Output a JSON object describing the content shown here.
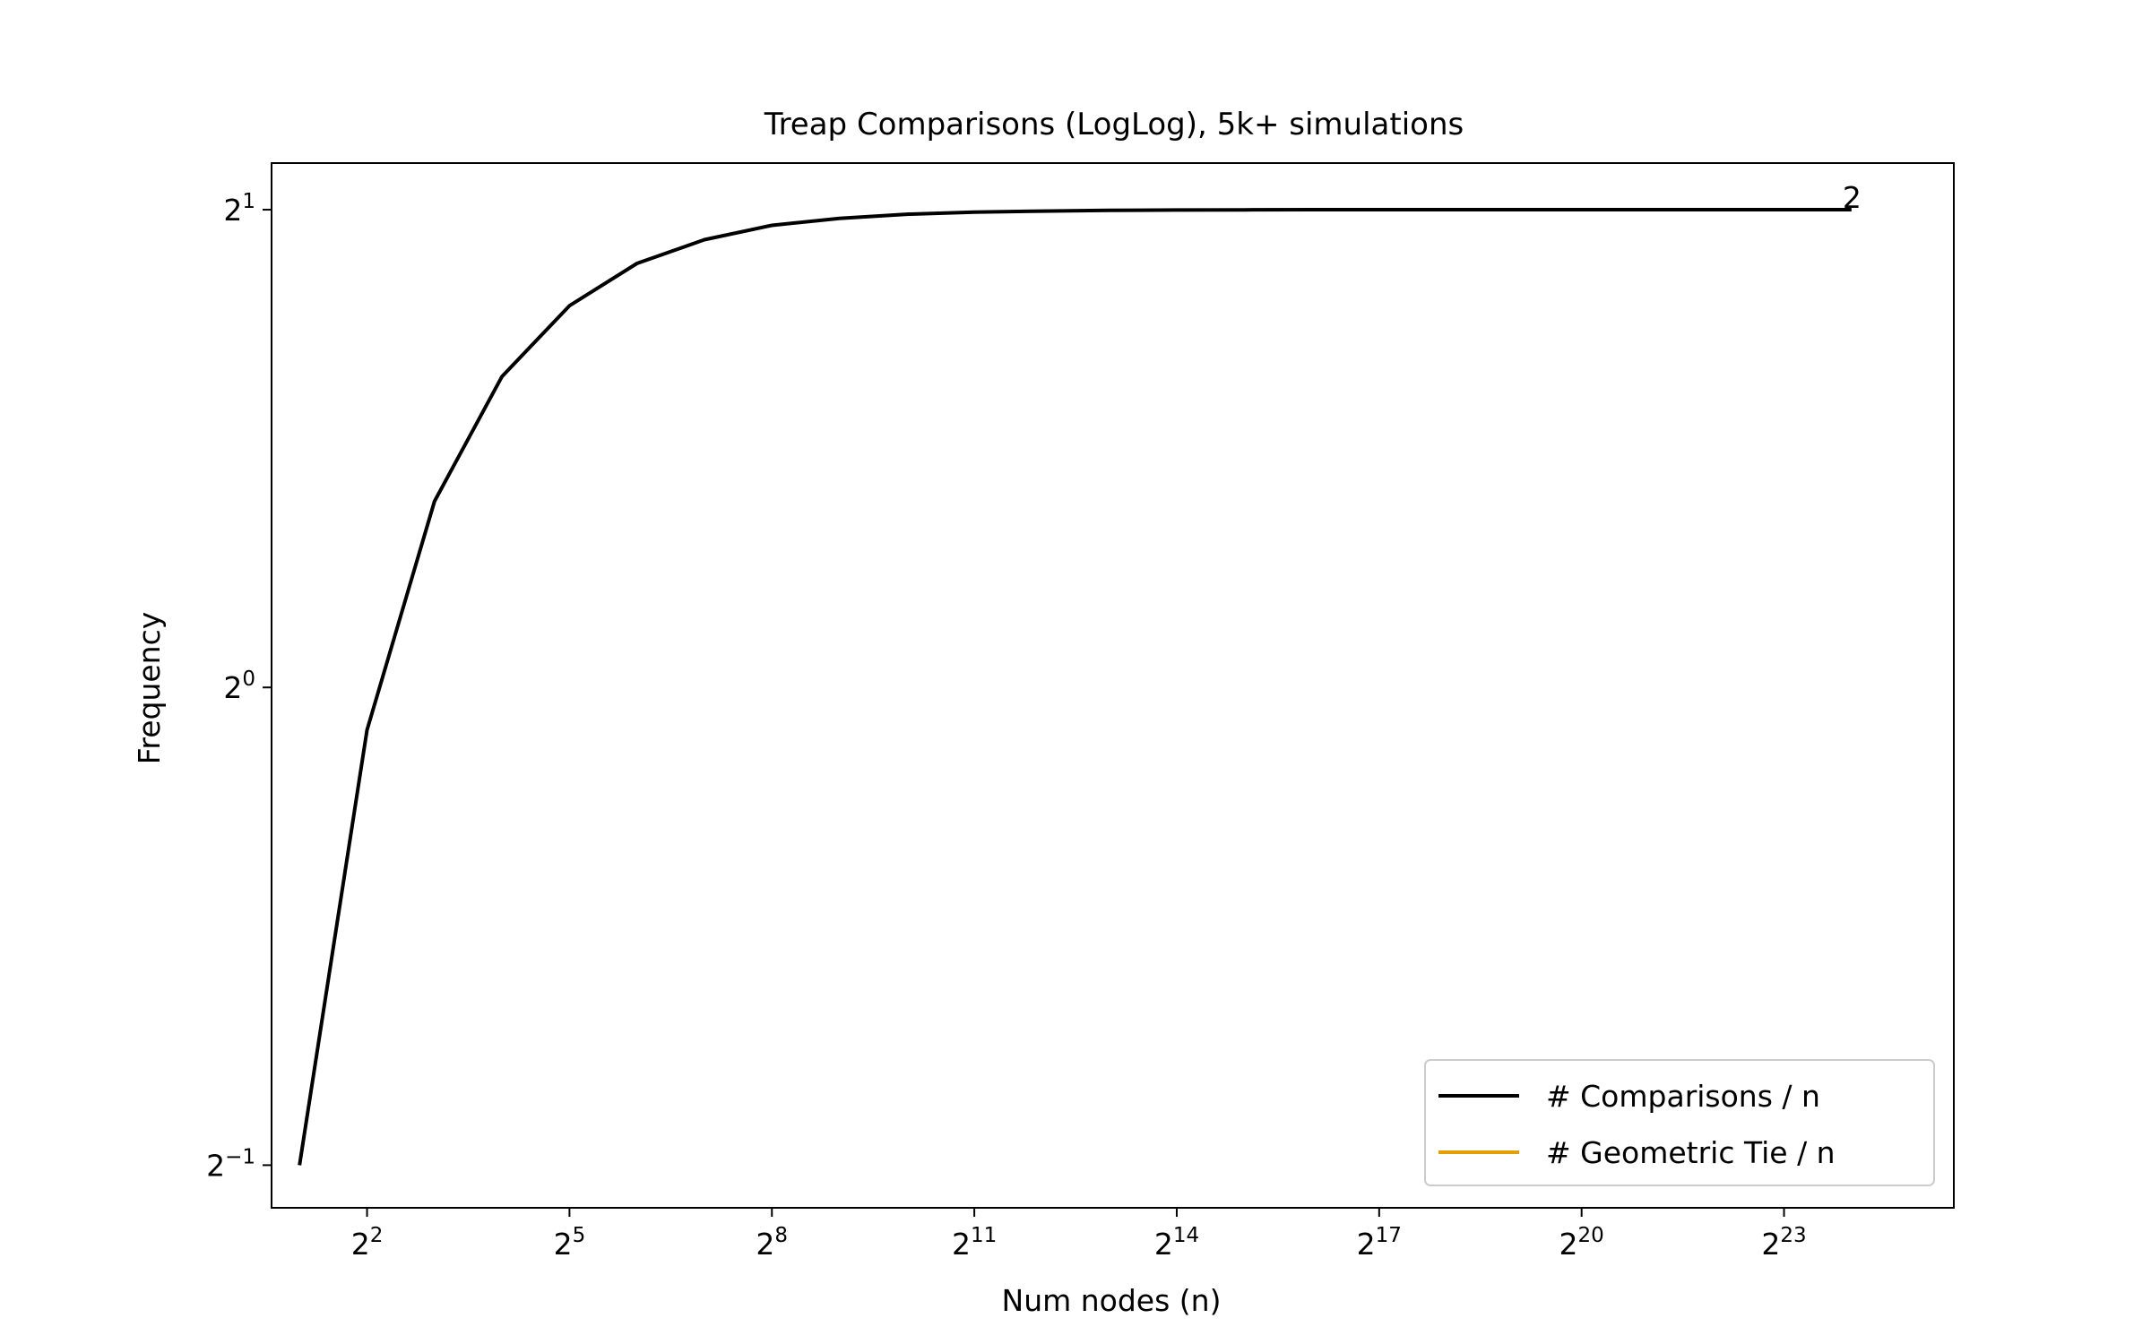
{
  "chart_data": {
    "type": "line",
    "title": "Treap Comparisons (LogLog), 5k+ simulations",
    "xlabel": "Num nodes (n)",
    "ylabel": "Frequency",
    "xscale": "log2",
    "yscale": "log2",
    "xlim": [
      1.5,
      48000000
    ],
    "ylim": [
      0.47,
      2.14
    ],
    "grid": false,
    "legend_position": "lower-right",
    "x_ticks": [
      {
        "base": "2",
        "exp": "2",
        "value": 4
      },
      {
        "base": "2",
        "exp": "5",
        "value": 32
      },
      {
        "base": "2",
        "exp": "8",
        "value": 256
      },
      {
        "base": "2",
        "exp": "11",
        "value": 2048
      },
      {
        "base": "2",
        "exp": "14",
        "value": 16384
      },
      {
        "base": "2",
        "exp": "17",
        "value": 131072
      },
      {
        "base": "2",
        "exp": "20",
        "value": 1048576
      },
      {
        "base": "2",
        "exp": "23",
        "value": 8388608
      }
    ],
    "y_ticks": [
      {
        "base": "2",
        "exp": "1",
        "value": 2
      },
      {
        "base": "2",
        "exp": "0",
        "value": 1
      },
      {
        "base": "2",
        "exp": "−1",
        "value": 0.5
      }
    ],
    "series": [
      {
        "name": "# Comparisons / n",
        "color": "#000000",
        "x": [
          2,
          4,
          8,
          16,
          32,
          64,
          128,
          256,
          512,
          1024,
          2048,
          4096,
          8192,
          16384,
          32768,
          65536,
          131072,
          262144,
          524288,
          1048576,
          2097152,
          4194304,
          8388608,
          16777216
        ],
        "y": [
          0.5,
          0.94,
          1.31,
          1.57,
          1.74,
          1.85,
          1.915,
          1.955,
          1.975,
          1.987,
          1.993,
          1.996,
          1.998,
          1.999,
          1.9995,
          2.0,
          2.0,
          2.0,
          2.0,
          2.0,
          2.0,
          2.0,
          2.0,
          2.0
        ]
      },
      {
        "name": "# Geometric Tie / n",
        "color": "#e69f00",
        "x": [],
        "y": []
      }
    ],
    "annotations": [
      {
        "text": "2",
        "x": 16777216,
        "y": 2.0
      }
    ]
  }
}
